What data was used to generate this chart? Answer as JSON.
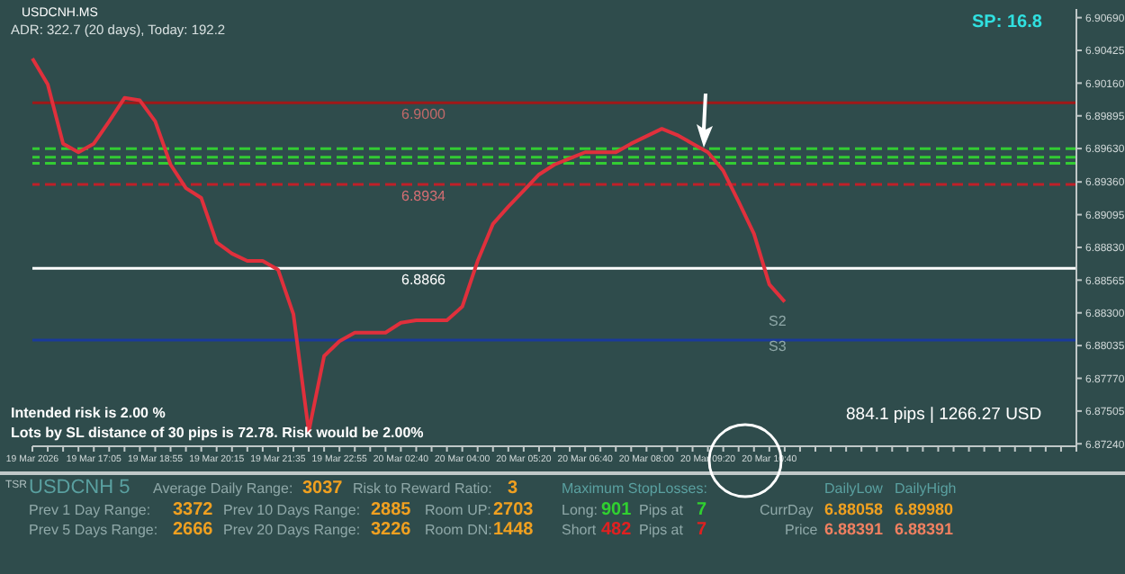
{
  "chart_data": {
    "type": "line",
    "categories": [
      "19 Mar 2026",
      null,
      null,
      null,
      "19 Mar 17:05",
      null,
      null,
      null,
      "19 Mar 18:55",
      null,
      null,
      null,
      "19 Mar 20:15",
      null,
      null,
      null,
      "19 Mar 21:35",
      null,
      null,
      null,
      "19 Mar 22:55",
      null,
      null,
      null,
      "20 Mar 02:40",
      null,
      null,
      null,
      "20 Mar 04:00",
      null,
      null,
      null,
      "20 Mar 05:20",
      null,
      null,
      null,
      "20 Mar 06:40",
      null,
      null,
      null,
      "20 Mar 08:00",
      null,
      null,
      null,
      "20 Mar 09:20",
      null,
      null,
      null,
      "20 Mar 10:40",
      null,
      null,
      null,
      null,
      null,
      null,
      null,
      null,
      null,
      null,
      null,
      null,
      null,
      null,
      null,
      null,
      null,
      null,
      null,
      null
    ],
    "series": [
      {
        "color": "#e0303c",
        "values": [
          6.9036,
          6.9015,
          6.8967,
          6.896,
          6.8967,
          6.8985,
          6.9004,
          6.9002,
          6.8985,
          6.895,
          6.8931,
          6.8923,
          6.8887,
          6.8878,
          6.8872,
          6.8872,
          6.8865,
          6.8829,
          6.8734,
          6.8795,
          6.8807,
          6.8814,
          6.8814,
          6.8814,
          6.8822,
          6.8824,
          6.8824,
          6.8824,
          6.8835,
          6.8872,
          6.8902,
          6.8916,
          6.8929,
          6.8942,
          6.895,
          6.8955,
          6.896,
          6.896,
          6.896,
          6.8967,
          6.8973,
          6.8979,
          6.8974,
          6.8967,
          6.896,
          6.8945,
          6.892,
          6.8894,
          6.8853,
          6.8839,
          null,
          null,
          null,
          null,
          null,
          null,
          null,
          null,
          null,
          null,
          null,
          null,
          null,
          null,
          null,
          null,
          null,
          null,
          null
        ]
      }
    ],
    "ylim": [
      6.8722,
      6.9076
    ],
    "yticks": [
      {
        "value": 6.8724,
        "label": "6.87240"
      },
      {
        "value": 6.87505,
        "label": "6.87505"
      },
      {
        "value": 6.8777,
        "label": "6.87770"
      },
      {
        "value": 6.88035,
        "label": "6.88035"
      },
      {
        "value": 6.883,
        "label": "6.88300"
      },
      {
        "value": 6.88565,
        "label": "6.88565"
      },
      {
        "value": 6.8883,
        "label": "6.88830"
      },
      {
        "value": 6.89095,
        "label": "6.89095"
      },
      {
        "value": 6.8936,
        "label": "6.89360"
      },
      {
        "value": 6.8963,
        "label": "6.89630"
      },
      {
        "value": 6.89895,
        "label": "6.89895"
      },
      {
        "value": 6.9016,
        "label": "6.90160"
      },
      {
        "value": 6.90425,
        "label": "6.90425"
      },
      {
        "value": 6.9069,
        "label": "6.90690"
      }
    ],
    "ref_lines": [
      {
        "axis": "y",
        "value": 6.9,
        "label": "6.9000",
        "color": "#a01818",
        "line_style": "solid"
      },
      {
        "axis": "y",
        "value": 6.8963,
        "color": "#33cc33",
        "line_style": "dashed"
      },
      {
        "axis": "y",
        "value": 6.8956,
        "color": "#33cc33",
        "line_style": "dashed"
      },
      {
        "axis": "y",
        "value": 6.8951,
        "color": "#33cc33",
        "line_style": "dashed"
      },
      {
        "axis": "y",
        "value": 6.8934,
        "label": "6.8934",
        "color": "#c02028",
        "line_style": "dashed"
      },
      {
        "axis": "y",
        "value": 6.8866,
        "label": "6.8866",
        "color": "#ffffff",
        "line_style": "solid"
      },
      {
        "axis": "y",
        "value": 6.8808,
        "color": "#1a3a9a",
        "line_style": "solid"
      }
    ],
    "annotations": [
      "USDCNH.MS",
      "ADR: 322.7 (20 days), Today: 192.2",
      "SP: 16.8",
      "Intended risk is 2.00 %",
      "Lots by SL distance of 30 pips is 72.78. Risk would be 2.00%",
      "884.1 pips | 1266.27 USD",
      "S2",
      "S3",
      "TSR",
      "USDCNH 5",
      "Average Daily Range:",
      "3037",
      "Risk to Reward Ratio:",
      "3",
      "Maximum StopLosses:",
      "Prev 1 Day Range:",
      "3372",
      "Prev 10 Days Range:",
      "2885",
      "Room UP:",
      "2703",
      "Prev 5 Days Range:",
      "2666",
      "Prev 20 Days Range:",
      "3226",
      "Room DN:",
      "1448",
      "Long:",
      "901",
      "Pips at",
      "7",
      "Short",
      "482",
      "Pips at",
      "7",
      "DailyLow",
      "DailyHigh",
      "CurrDay",
      "6.88058",
      "6.89980",
      "Price",
      "6.88391",
      "6.88391"
    ],
    "marker": "none",
    "line_style": "solid"
  }
}
